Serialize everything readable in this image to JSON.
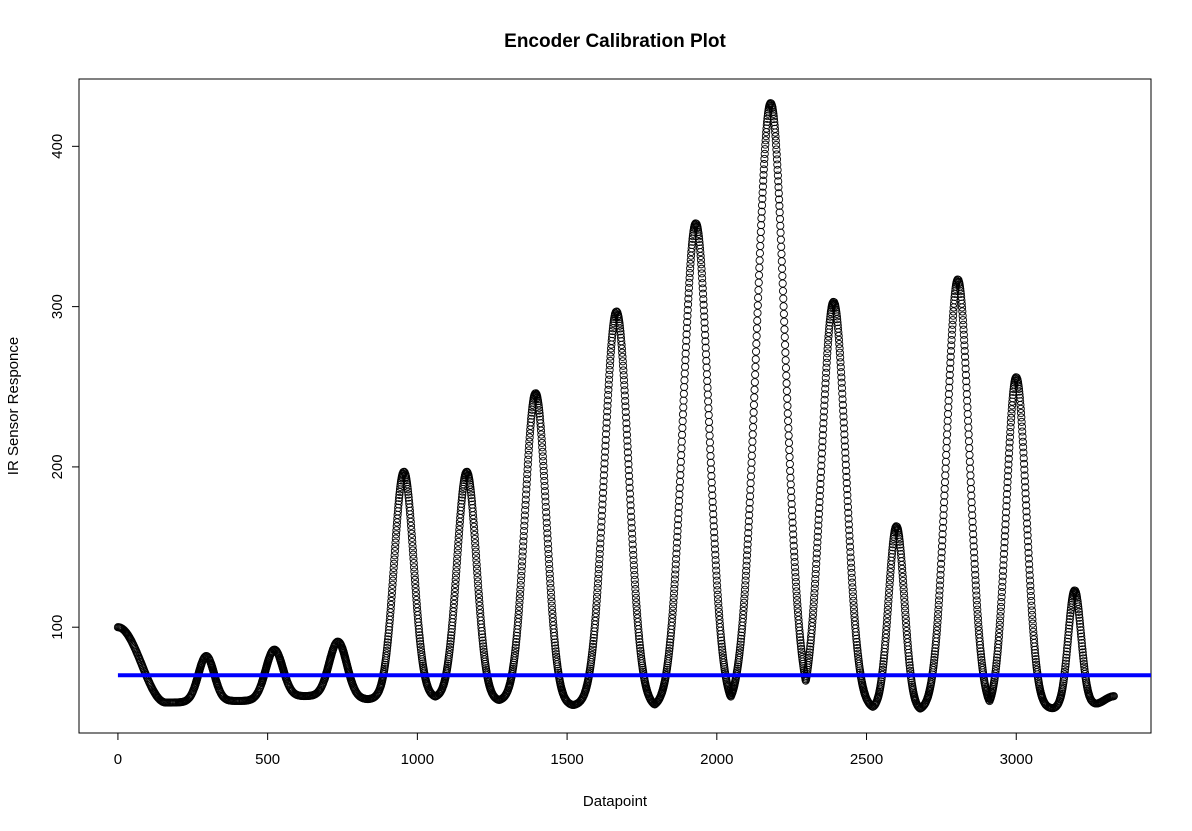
{
  "chart_data": {
    "type": "scatter",
    "title": "Encoder Calibration Plot",
    "xlabel": "Datapoint",
    "ylabel": "IR Sensor Responce",
    "xlim": [
      -130,
      3450
    ],
    "ylim": [
      34,
      442
    ],
    "x_ticks": [
      0,
      500,
      1000,
      1500,
      2000,
      2500,
      3000
    ],
    "y_ticks": [
      100,
      200,
      300,
      400
    ],
    "x_tick_labels": [
      "0",
      "500",
      "1000",
      "1500",
      "2000",
      "2500",
      "3000"
    ],
    "y_tick_labels": [
      "100",
      "200",
      "300",
      "400"
    ],
    "grid": false,
    "legend": "none",
    "point_marker": "open-circle",
    "point_color": "#000000",
    "n_points": 3330,
    "x_range": [
      0,
      3329
    ],
    "start_value": 100,
    "end_value": 57,
    "peaks": [
      {
        "x": 295,
        "y": 82,
        "halfwidth": 55
      },
      {
        "x": 522,
        "y": 86,
        "halfwidth": 60
      },
      {
        "x": 735,
        "y": 91,
        "halfwidth": 62
      },
      {
        "x": 955,
        "y": 197,
        "halfwidth": 68
      },
      {
        "x": 1165,
        "y": 197,
        "halfwidth": 68
      },
      {
        "x": 1395,
        "y": 246,
        "halfwidth": 75
      },
      {
        "x": 1665,
        "y": 297,
        "halfwidth": 85
      },
      {
        "x": 1930,
        "y": 352,
        "halfwidth": 90
      },
      {
        "x": 2180,
        "y": 427,
        "halfwidth": 100
      },
      {
        "x": 2390,
        "y": 303,
        "halfwidth": 85
      },
      {
        "x": 2600,
        "y": 163,
        "halfwidth": 55
      },
      {
        "x": 2805,
        "y": 317,
        "halfwidth": 80
      },
      {
        "x": 3000,
        "y": 256,
        "halfwidth": 70
      },
      {
        "x": 3195,
        "y": 123,
        "halfwidth": 45
      }
    ],
    "troughs": [
      {
        "x": 160,
        "y": 53
      },
      {
        "x": 410,
        "y": 54
      },
      {
        "x": 630,
        "y": 57
      },
      {
        "x": 840,
        "y": 55
      },
      {
        "x": 1060,
        "y": 56
      },
      {
        "x": 1280,
        "y": 54
      },
      {
        "x": 1525,
        "y": 51
      },
      {
        "x": 1800,
        "y": 50
      },
      {
        "x": 2060,
        "y": 49
      },
      {
        "x": 2280,
        "y": 48
      },
      {
        "x": 2500,
        "y": 49
      },
      {
        "x": 2700,
        "y": 48
      },
      {
        "x": 2905,
        "y": 48
      },
      {
        "x": 3095,
        "y": 49
      },
      {
        "x": 3260,
        "y": 52
      }
    ],
    "reference_line": {
      "y": 70,
      "x_from": 0,
      "x_to": 3450,
      "color": "#0000ff"
    }
  }
}
